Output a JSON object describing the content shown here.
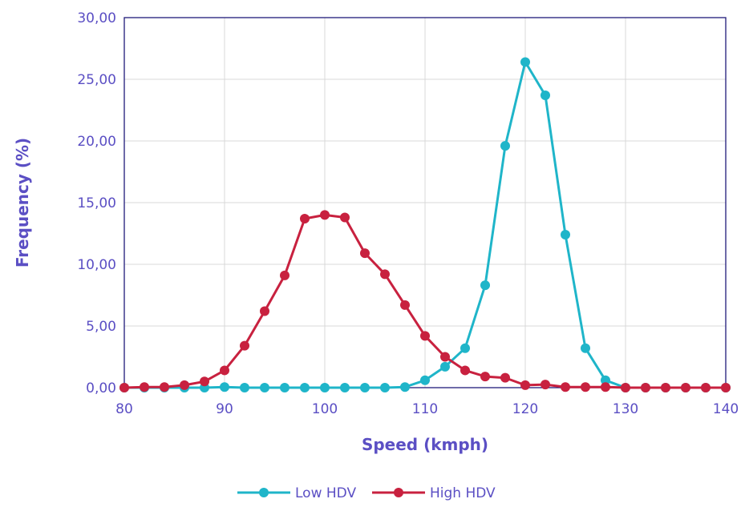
{
  "chart_data": {
    "type": "line",
    "xlabel": "Speed (kmph)",
    "ylabel": "Frequency (%)",
    "xlim": [
      80,
      140
    ],
    "ylim": [
      0,
      30
    ],
    "x_ticks": [
      "80",
      "90",
      "100",
      "110",
      "120",
      "130",
      "140"
    ],
    "y_ticks": [
      "0,00",
      "5,00",
      "10,00",
      "15,00",
      "20,00",
      "25,00",
      "30,00"
    ],
    "grid": true,
    "legend_position": "bottom",
    "x": [
      80,
      82,
      84,
      86,
      88,
      90,
      92,
      94,
      96,
      98,
      100,
      102,
      104,
      106,
      108,
      110,
      112,
      114,
      116,
      118,
      120,
      122,
      124,
      126,
      128,
      130,
      132,
      134,
      136,
      138,
      140
    ],
    "series": [
      {
        "name": "Low HDV",
        "color": "#1fb5c9",
        "values": [
          0,
          0,
          0,
          0,
          0,
          0.05,
          0,
          0,
          0,
          0,
          0,
          0,
          0,
          0,
          0.05,
          0.6,
          1.7,
          3.2,
          8.3,
          19.6,
          26.4,
          23.7,
          12.4,
          3.2,
          0.6,
          0,
          0,
          0,
          0,
          0,
          0
        ]
      },
      {
        "name": "High HDV",
        "color": "#c8213f",
        "values": [
          0,
          0.05,
          0.05,
          0.2,
          0.5,
          1.4,
          3.4,
          6.2,
          9.1,
          13.7,
          14.0,
          13.8,
          10.9,
          9.2,
          6.7,
          4.2,
          2.5,
          1.4,
          0.9,
          0.8,
          0.2,
          0.25,
          0.05,
          0.05,
          0.05,
          0,
          0,
          0,
          0,
          0,
          0
        ]
      }
    ]
  }
}
